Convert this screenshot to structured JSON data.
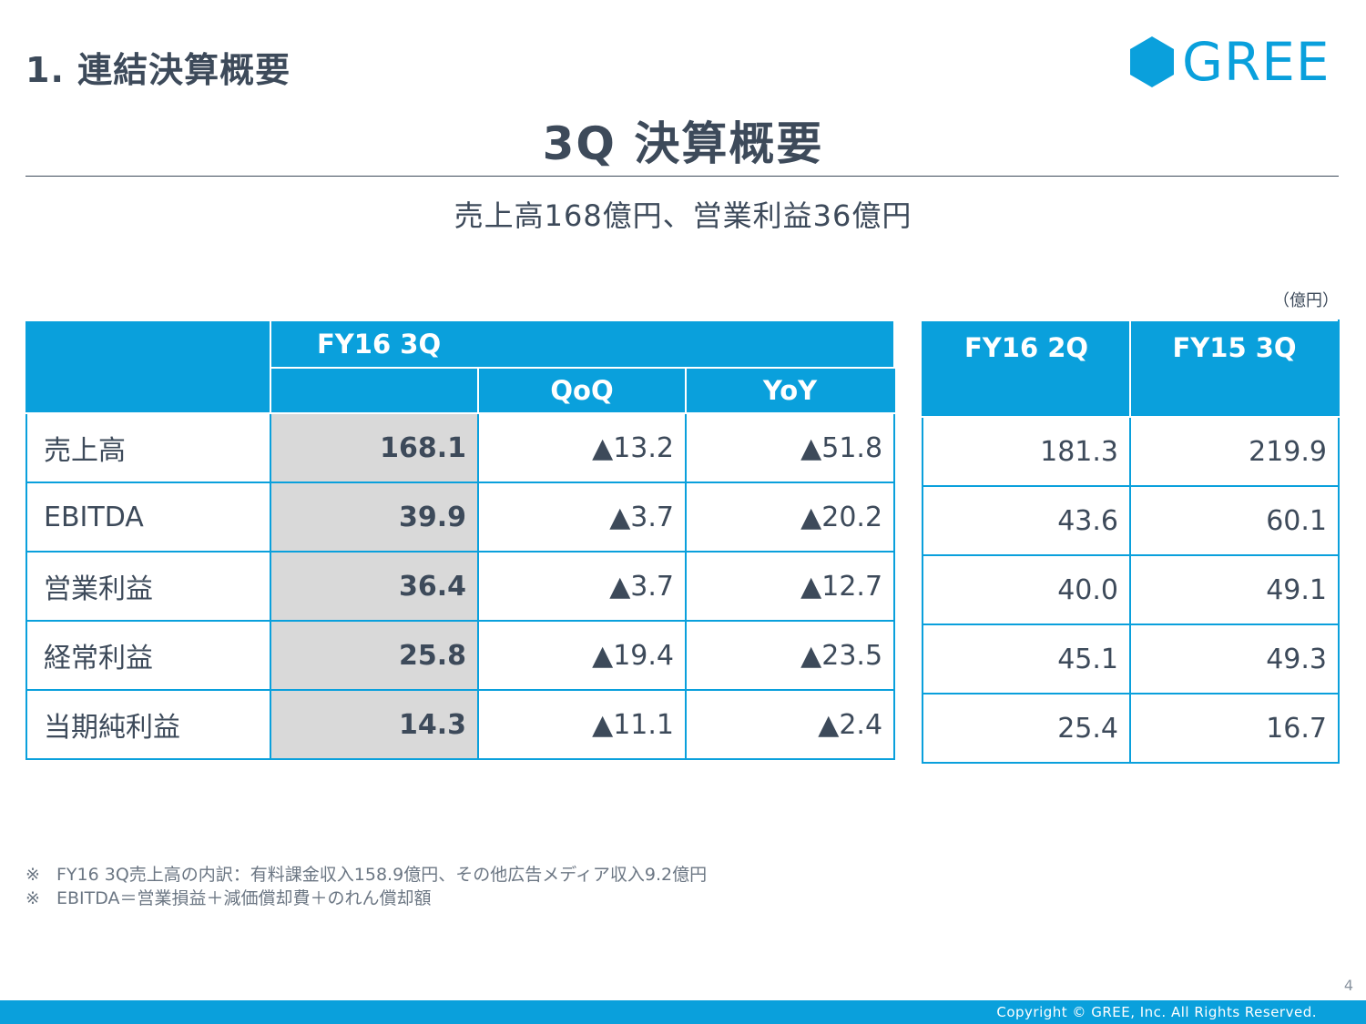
{
  "header": {
    "section_title": "1. 連結決算概要",
    "logo_text": "GREE",
    "main_title": "3Q 決算概要",
    "subtitle": "売上高168億円、営業利益36億円",
    "unit": "（億円）"
  },
  "table_main": {
    "period_label": "FY16 3Q",
    "qoq_label": "QoQ",
    "yoy_label": "YoY",
    "rows": [
      {
        "label": "売上高",
        "value": "168.1",
        "qoq": "▲13.2",
        "yoy": "▲51.8"
      },
      {
        "label": "EBITDA",
        "value": "39.9",
        "qoq": "▲3.7",
        "yoy": "▲20.2"
      },
      {
        "label": "営業利益",
        "value": "36.4",
        "qoq": "▲3.7",
        "yoy": "▲12.7"
      },
      {
        "label": "経常利益",
        "value": "25.8",
        "qoq": "▲19.4",
        "yoy": "▲23.5"
      },
      {
        "label": "当期純利益",
        "value": "14.3",
        "qoq": "▲11.1",
        "yoy": "▲2.4"
      }
    ]
  },
  "table_compare": {
    "col1_label": "FY16 2Q",
    "col2_label": "FY15 3Q",
    "rows": [
      {
        "col1": "181.3",
        "col2": "219.9"
      },
      {
        "col1": "43.6",
        "col2": "60.1"
      },
      {
        "col1": "40.0",
        "col2": "49.1"
      },
      {
        "col1": "45.1",
        "col2": "49.3"
      },
      {
        "col1": "25.4",
        "col2": "16.7"
      }
    ]
  },
  "notes": [
    {
      "mark": "※",
      "text": "FY16 3Q売上高の内訳：有料課金収入158.9億円、その他広告メディア収入9.2億円"
    },
    {
      "mark": "※",
      "text": "EBITDA＝営業損益＋減価償却費＋のれん償却額"
    }
  ],
  "footer": {
    "page_number": "4",
    "copyright": "Copyright © GREE, Inc. All Rights Reserved."
  },
  "colors": {
    "accent": "#0aa0dc",
    "text": "#3d4a5a",
    "highlight_cell": "#d9d9d9"
  }
}
